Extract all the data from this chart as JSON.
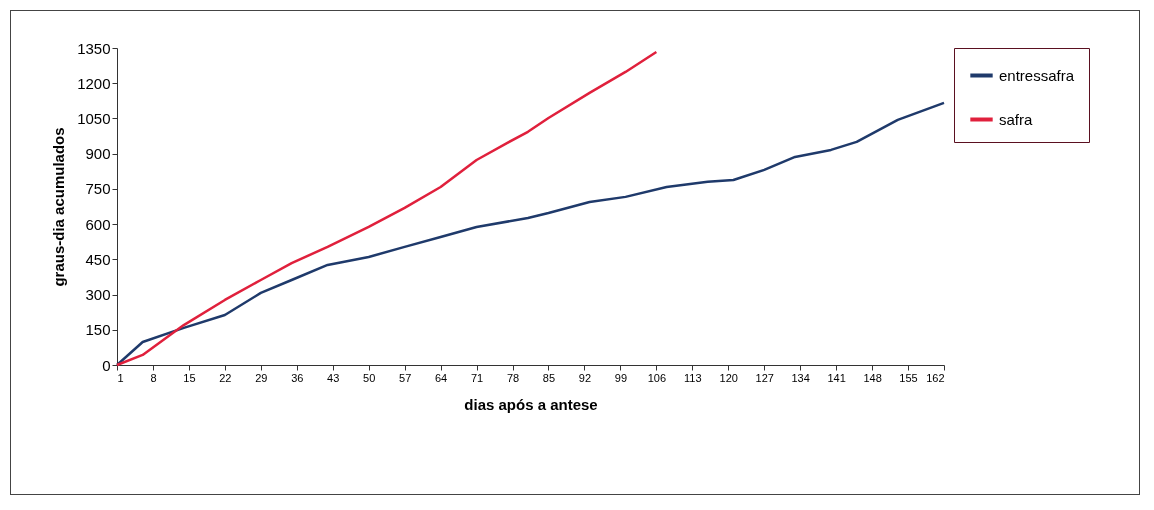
{
  "chart_data": {
    "type": "line",
    "xlabel": "dias após a antese",
    "ylabel": "graus-dia acumulados",
    "xlim": [
      1,
      162
    ],
    "xticks": [
      1,
      8,
      15,
      22,
      29,
      36,
      43,
      50,
      57,
      64,
      71,
      78,
      85,
      92,
      99,
      106,
      113,
      120,
      127,
      134,
      141,
      148,
      155,
      162
    ],
    "ylim": [
      0,
      1350
    ],
    "yticks": [
      0,
      150,
      300,
      450,
      600,
      750,
      900,
      1050,
      1200,
      1350
    ],
    "grid": false,
    "legend": "right",
    "marker": "none",
    "line_style": "solid",
    "series": [
      {
        "name": "entressafra",
        "color": "#1f3a6b",
        "x": [
          1,
          6,
          14,
          22,
          29,
          35,
          42,
          50,
          57,
          64,
          71,
          81,
          85,
          93,
          100,
          108,
          116,
          121,
          127,
          133,
          140,
          145,
          153,
          162
        ],
        "values": [
          0,
          98,
          158,
          213,
          307,
          362,
          426,
          460,
          503,
          545,
          588,
          626,
          647,
          694,
          716,
          758,
          780,
          788,
          831,
          886,
          916,
          950,
          1044,
          1116
        ]
      },
      {
        "name": "safra",
        "color": "#e0203c",
        "x": [
          1,
          6,
          14,
          22,
          29,
          35,
          42,
          50,
          57,
          64,
          71,
          77,
          81,
          85,
          93,
          100,
          106
        ],
        "values": [
          0,
          43,
          170,
          277,
          362,
          434,
          503,
          588,
          669,
          758,
          873,
          946,
          993,
          1052,
          1159,
          1248,
          1333
        ]
      }
    ]
  }
}
